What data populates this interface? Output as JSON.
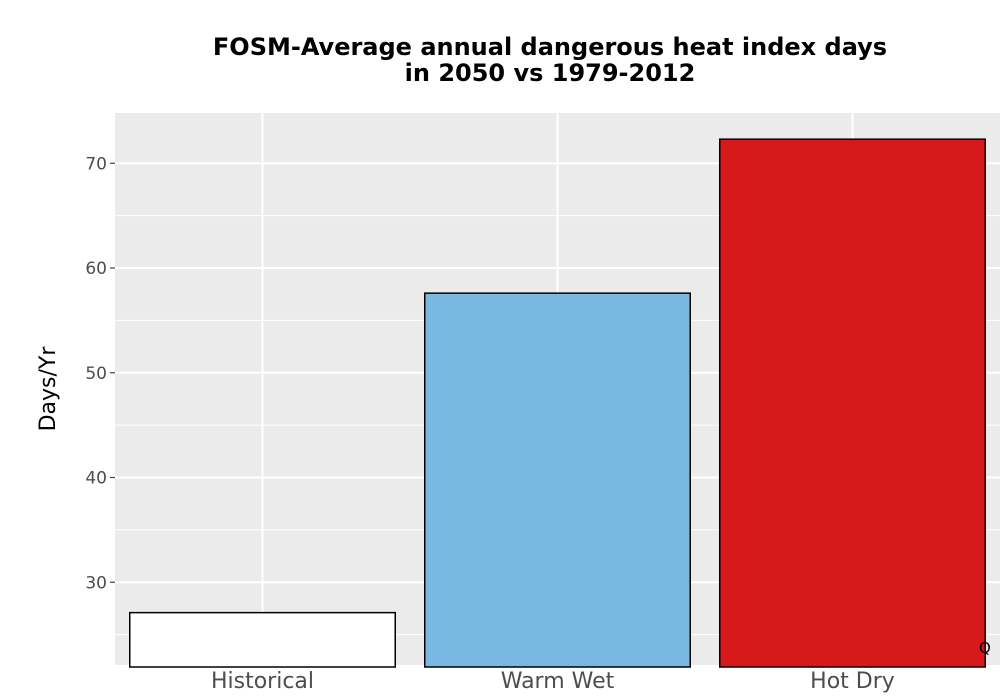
{
  "chart_data": {
    "type": "bar",
    "title_lines": [
      "FOSM-Average annual dangerous heat index days",
      "in 2050 vs 1979-2012"
    ],
    "xlabel": "",
    "ylabel": "Days/Yr",
    "categories": [
      "Historical",
      "Warm Wet",
      "Hot Dry"
    ],
    "values": [
      27.1,
      57.6,
      72.3
    ],
    "bar_colors": [
      "#ffffff",
      "#79b8e1",
      "#d7191c"
    ],
    "bar_outline": "#000000",
    "ylim": [
      22.1,
      74.8
    ],
    "yticks": [
      30,
      40,
      50,
      60,
      70
    ],
    "grid": true,
    "legend": "none",
    "panel_color": "#ebebeb"
  },
  "corner_text": "Q"
}
